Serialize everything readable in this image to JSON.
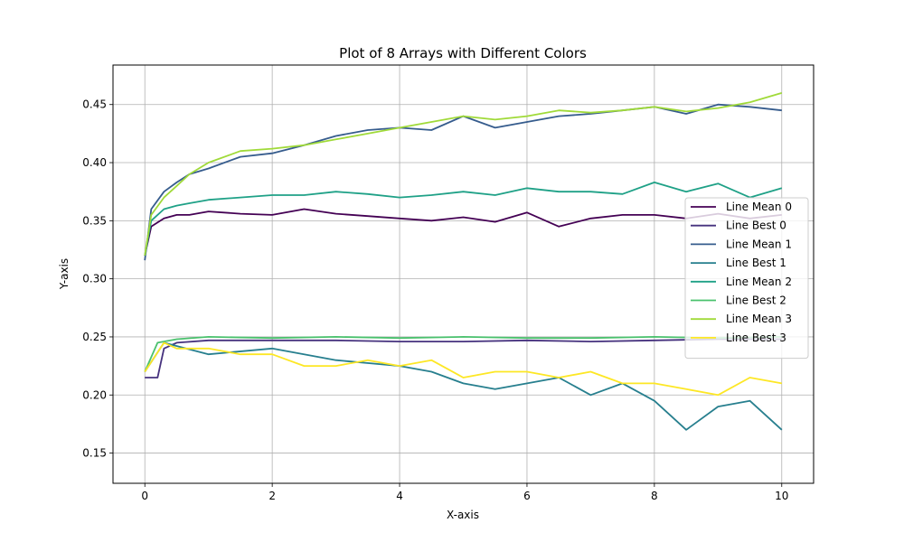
{
  "chart_data": {
    "type": "line",
    "title": "Plot of 8 Arrays with Different Colors",
    "xlabel": "X-axis",
    "ylabel": "Y-axis",
    "xlim": [
      -0.5,
      10.5
    ],
    "ylim": [
      0.124,
      0.484
    ],
    "xticks": [
      0,
      2,
      4,
      6,
      8,
      10
    ],
    "xtick_labels": [
      "0",
      "2",
      "4",
      "6",
      "8",
      "10"
    ],
    "yticks": [
      0.15,
      0.2,
      0.25,
      0.3,
      0.35,
      0.4,
      0.45
    ],
    "ytick_labels": [
      "0.15",
      "0.20",
      "0.25",
      "0.30",
      "0.35",
      "0.40",
      "0.45"
    ],
    "grid": true,
    "legend_position": "center-right",
    "series": [
      {
        "name": "Line Mean 0",
        "color": "#440154",
        "x": [
          0,
          0.1,
          0.3,
          0.5,
          0.7,
          1,
          1.5,
          2,
          2.5,
          3,
          3.5,
          4,
          4.5,
          5,
          5.5,
          6,
          6.5,
          7,
          7.5,
          8,
          8.5,
          9,
          9.5,
          10
        ],
        "y": [
          0.32,
          0.345,
          0.352,
          0.355,
          0.355,
          0.358,
          0.356,
          0.355,
          0.36,
          0.356,
          0.354,
          0.352,
          0.35,
          0.353,
          0.349,
          0.357,
          0.345,
          0.352,
          0.355,
          0.355,
          0.352,
          0.356,
          0.352,
          0.355
        ]
      },
      {
        "name": "Line Best 0",
        "color": "#46327e",
        "x": [
          0,
          0.2,
          0.3,
          0.5,
          1,
          2,
          3,
          4,
          5,
          6,
          7,
          8,
          9,
          10
        ],
        "y": [
          0.215,
          0.215,
          0.24,
          0.245,
          0.247,
          0.247,
          0.247,
          0.246,
          0.246,
          0.247,
          0.246,
          0.247,
          0.248,
          0.248
        ]
      },
      {
        "name": "Line Mean 1",
        "color": "#365c8d",
        "x": [
          0,
          0.1,
          0.3,
          0.5,
          0.7,
          1,
          1.5,
          2,
          2.5,
          3,
          3.5,
          4,
          4.5,
          5,
          5.5,
          6,
          6.5,
          7,
          7.5,
          8,
          8.5,
          9,
          9.5,
          10
        ],
        "y": [
          0.316,
          0.36,
          0.375,
          0.383,
          0.39,
          0.395,
          0.405,
          0.408,
          0.415,
          0.423,
          0.428,
          0.43,
          0.428,
          0.44,
          0.43,
          0.435,
          0.44,
          0.442,
          0.445,
          0.448,
          0.442,
          0.45,
          0.448,
          0.445
        ]
      },
      {
        "name": "Line Best 1",
        "color": "#277f8e",
        "x": [
          0,
          0.3,
          1,
          2,
          3,
          4,
          4.5,
          5,
          5.5,
          6,
          6.5,
          7,
          7.5,
          8,
          8.5,
          9,
          9.5,
          10
        ],
        "y": [
          0.22,
          0.245,
          0.235,
          0.24,
          0.23,
          0.225,
          0.22,
          0.21,
          0.205,
          0.21,
          0.215,
          0.2,
          0.21,
          0.195,
          0.17,
          0.19,
          0.195,
          0.17
        ]
      },
      {
        "name": "Line Mean 2",
        "color": "#1fa187",
        "x": [
          0,
          0.1,
          0.3,
          0.5,
          0.7,
          1,
          1.5,
          2,
          2.5,
          3,
          3.5,
          4,
          4.5,
          5,
          5.5,
          6,
          6.5,
          7,
          7.5,
          8,
          8.5,
          9,
          9.5,
          10
        ],
        "y": [
          0.32,
          0.35,
          0.36,
          0.363,
          0.365,
          0.368,
          0.37,
          0.372,
          0.372,
          0.375,
          0.373,
          0.37,
          0.372,
          0.375,
          0.372,
          0.378,
          0.375,
          0.375,
          0.373,
          0.383,
          0.375,
          0.382,
          0.37,
          0.378
        ]
      },
      {
        "name": "Line Best 2",
        "color": "#4ac16d",
        "x": [
          0,
          0.2,
          0.5,
          1,
          2,
          3,
          4,
          5,
          6,
          7,
          8,
          9,
          10
        ],
        "y": [
          0.22,
          0.245,
          0.248,
          0.25,
          0.249,
          0.25,
          0.249,
          0.25,
          0.249,
          0.249,
          0.25,
          0.249,
          0.25
        ]
      },
      {
        "name": "Line Mean 3",
        "color": "#a0da39",
        "x": [
          0,
          0.1,
          0.3,
          0.5,
          0.7,
          1,
          1.5,
          2,
          2.5,
          3,
          3.5,
          4,
          4.5,
          5,
          5.5,
          6,
          6.5,
          7,
          7.5,
          8,
          8.5,
          9,
          9.5,
          10
        ],
        "y": [
          0.32,
          0.355,
          0.37,
          0.38,
          0.39,
          0.4,
          0.41,
          0.412,
          0.415,
          0.42,
          0.425,
          0.43,
          0.435,
          0.44,
          0.437,
          0.44,
          0.445,
          0.443,
          0.445,
          0.448,
          0.444,
          0.447,
          0.452,
          0.46
        ]
      },
      {
        "name": "Line Best 3",
        "color": "#fde725",
        "x": [
          0,
          0.3,
          0.5,
          1,
          1.5,
          2,
          2.5,
          3,
          3.5,
          4,
          4.5,
          5,
          5.5,
          6,
          6.5,
          7,
          7.5,
          8,
          8.5,
          9,
          9.5,
          10
        ],
        "y": [
          0.22,
          0.245,
          0.24,
          0.24,
          0.235,
          0.235,
          0.225,
          0.225,
          0.23,
          0.225,
          0.23,
          0.215,
          0.22,
          0.22,
          0.215,
          0.22,
          0.21,
          0.21,
          0.205,
          0.2,
          0.215,
          0.21
        ]
      }
    ]
  }
}
